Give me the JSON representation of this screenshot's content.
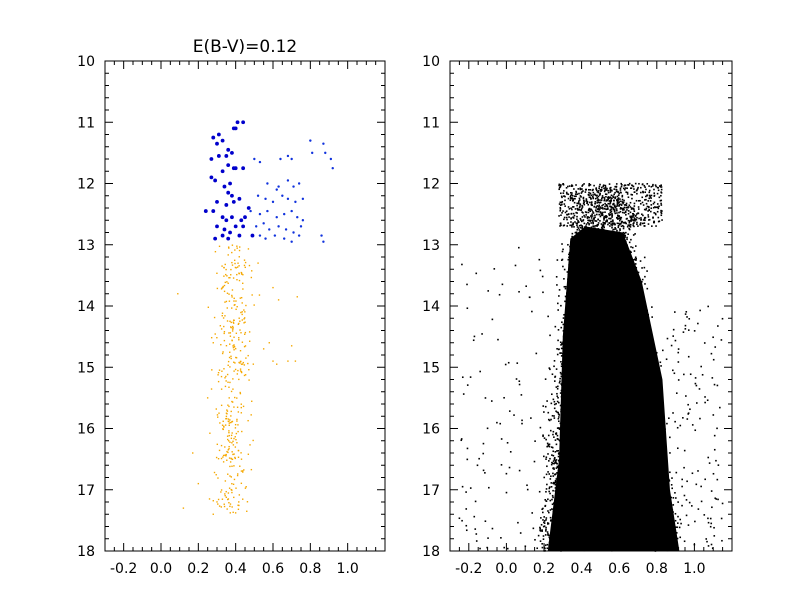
{
  "chart_data": [
    {
      "type": "scatter",
      "title": "E(B-V)=0.12",
      "xlabel": "",
      "ylabel": "",
      "xlim": [
        -0.3,
        1.2
      ],
      "ylim": [
        18,
        10
      ],
      "y_inverted": true,
      "x_ticks": [
        "-0.2",
        "0.0",
        "0.2",
        "0.4",
        "0.6",
        "0.8",
        "1.0"
      ],
      "x_tick_values": [
        -0.2,
        0.0,
        0.2,
        0.4,
        0.6,
        0.8,
        1.0
      ],
      "y_ticks": [
        "10",
        "11",
        "12",
        "13",
        "14",
        "15",
        "16",
        "17",
        "18"
      ],
      "y_tick_values": [
        10,
        11,
        12,
        13,
        14,
        15,
        16,
        17,
        18
      ],
      "grid": false,
      "series": [
        {
          "color": "#0000cc",
          "marker": "dot-large",
          "points": [
            [
              0.28,
              11.25
            ],
            [
              0.31,
              11.2
            ],
            [
              0.3,
              11.35
            ],
            [
              0.33,
              11.3
            ],
            [
              0.36,
              11.45
            ],
            [
              0.38,
              11.5
            ],
            [
              0.4,
              11.1
            ],
            [
              0.41,
              11.0
            ],
            [
              0.44,
              11.0
            ],
            [
              0.39,
              11.1
            ],
            [
              0.27,
              11.6
            ],
            [
              0.31,
              11.55
            ],
            [
              0.35,
              11.55
            ],
            [
              0.36,
              11.7
            ],
            [
              0.39,
              11.75
            ],
            [
              0.27,
              11.9
            ],
            [
              0.29,
              11.95
            ],
            [
              0.33,
              11.8
            ],
            [
              0.37,
              12.0
            ],
            [
              0.4,
              11.75
            ],
            [
              0.44,
              11.75
            ],
            [
              0.34,
              12.05
            ],
            [
              0.36,
              12.15
            ],
            [
              0.38,
              12.2
            ],
            [
              0.3,
              12.3
            ],
            [
              0.35,
              12.35
            ],
            [
              0.39,
              12.3
            ],
            [
              0.42,
              12.25
            ],
            [
              0.24,
              12.45
            ],
            [
              0.28,
              12.45
            ],
            [
              0.33,
              12.55
            ],
            [
              0.35,
              12.6
            ],
            [
              0.38,
              12.55
            ],
            [
              0.43,
              12.6
            ],
            [
              0.45,
              12.55
            ],
            [
              0.3,
              12.7
            ],
            [
              0.34,
              12.75
            ],
            [
              0.37,
              12.8
            ],
            [
              0.4,
              12.7
            ],
            [
              0.44,
              12.7
            ],
            [
              0.29,
              12.9
            ],
            [
              0.33,
              12.85
            ],
            [
              0.36,
              12.9
            ],
            [
              0.42,
              12.85
            ],
            [
              0.47,
              12.4
            ],
            [
              0.49,
              12.85
            ]
          ]
        },
        {
          "color": "#1133dd",
          "marker": "dot-small",
          "points": [
            [
              0.5,
              11.6
            ],
            [
              0.53,
              11.65
            ],
            [
              0.64,
              11.6
            ],
            [
              0.68,
              11.55
            ],
            [
              0.7,
              11.6
            ],
            [
              0.8,
              11.3
            ],
            [
              0.81,
              11.5
            ],
            [
              0.87,
              11.35
            ],
            [
              0.88,
              11.5
            ],
            [
              0.91,
              11.6
            ],
            [
              0.92,
              11.75
            ],
            [
              0.57,
              12.0
            ],
            [
              0.62,
              12.1
            ],
            [
              0.63,
              12.05
            ],
            [
              0.68,
              11.95
            ],
            [
              0.71,
              12.05
            ],
            [
              0.74,
              12.0
            ],
            [
              0.52,
              12.2
            ],
            [
              0.56,
              12.25
            ],
            [
              0.6,
              12.3
            ],
            [
              0.65,
              12.2
            ],
            [
              0.68,
              12.25
            ],
            [
              0.72,
              12.3
            ],
            [
              0.76,
              12.25
            ],
            [
              0.48,
              12.45
            ],
            [
              0.53,
              12.5
            ],
            [
              0.57,
              12.45
            ],
            [
              0.62,
              12.55
            ],
            [
              0.66,
              12.5
            ],
            [
              0.7,
              12.45
            ],
            [
              0.73,
              12.55
            ],
            [
              0.76,
              12.6
            ],
            [
              0.51,
              12.7
            ],
            [
              0.55,
              12.65
            ],
            [
              0.58,
              12.75
            ],
            [
              0.63,
              12.7
            ],
            [
              0.67,
              12.75
            ],
            [
              0.71,
              12.8
            ],
            [
              0.75,
              12.7
            ],
            [
              0.53,
              12.85
            ],
            [
              0.56,
              12.9
            ],
            [
              0.61,
              12.85
            ],
            [
              0.66,
              12.9
            ],
            [
              0.7,
              12.95
            ],
            [
              0.74,
              12.85
            ],
            [
              0.86,
              12.85
            ],
            [
              0.87,
              12.95
            ]
          ]
        },
        {
          "color": "#f5a800",
          "marker": "dot-small",
          "note_count": 420,
          "region": "lower sequence x 0.25-0.50 for y 13.0-17.4 with sparse outliers",
          "points": [
            [
              0.09,
              13.8
            ],
            [
              0.17,
              16.4
            ],
            [
              0.12,
              17.3
            ],
            [
              0.2,
              16.9
            ],
            [
              0.26,
              17.15
            ],
            [
              0.28,
              17.4
            ],
            [
              0.25,
              15.5
            ],
            [
              0.28,
              14.6
            ],
            [
              0.6,
              14.9
            ],
            [
              0.62,
              14.95
            ],
            [
              0.68,
              14.9
            ],
            [
              0.7,
              14.65
            ],
            [
              0.72,
              14.9
            ],
            [
              0.73,
              13.85
            ],
            [
              0.52,
              13.3
            ],
            [
              0.6,
              13.7
            ],
            [
              0.63,
              13.9
            ],
            [
              0.58,
              14.6
            ],
            [
              0.55,
              14.7
            ]
          ]
        }
      ]
    },
    {
      "type": "scatter",
      "title": "",
      "xlabel": "",
      "ylabel": "",
      "xlim": [
        -0.3,
        1.2
      ],
      "ylim": [
        18,
        10
      ],
      "y_inverted": true,
      "x_ticks": [
        "-0.2",
        "0.0",
        "0.2",
        "0.4",
        "0.6",
        "0.8",
        "1.0"
      ],
      "x_tick_values": [
        -0.2,
        0.0,
        0.2,
        0.4,
        0.6,
        0.8,
        1.0
      ],
      "y_ticks": [
        "10",
        "11",
        "12",
        "13",
        "14",
        "15",
        "16",
        "17",
        "18"
      ],
      "y_tick_values": [
        10,
        11,
        12,
        13,
        14,
        15,
        16,
        17,
        18
      ],
      "grid": false,
      "series": [
        {
          "color": "#000000",
          "marker": "dot-small",
          "density": "very dense",
          "region": "magnitude 12.0-18.0, colour spread widening from about 0.3-0.7 at top to 0.2-0.9 at bottom, sparse outliers down to -0.25"
        }
      ]
    }
  ]
}
